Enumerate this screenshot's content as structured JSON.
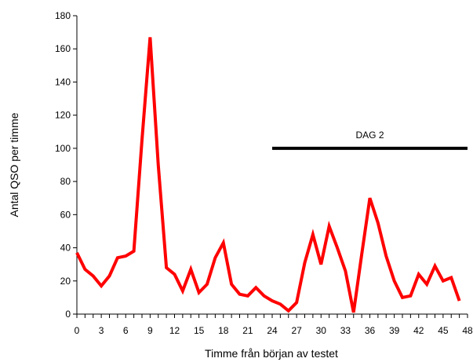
{
  "chart_data": {
    "type": "line",
    "title": "",
    "xlabel": "Timme från början av testet",
    "ylabel": "Antal QSO per timme",
    "xlim": [
      0,
      48
    ],
    "ylim": [
      0,
      180
    ],
    "x_ticks": [
      0,
      3,
      6,
      9,
      12,
      15,
      18,
      21,
      24,
      27,
      30,
      33,
      36,
      39,
      42,
      45,
      48
    ],
    "y_ticks": [
      0,
      20,
      40,
      60,
      80,
      100,
      120,
      140,
      160,
      180
    ],
    "grid": false,
    "legend": "none",
    "series": [
      {
        "color": "#ff0000",
        "x": [
          0,
          1,
          2,
          3,
          4,
          5,
          6,
          7,
          8,
          9,
          10,
          11,
          12,
          13,
          14,
          15,
          16,
          17,
          18,
          19,
          20,
          21,
          22,
          23,
          24,
          25,
          26,
          27,
          28,
          29,
          30,
          31,
          32,
          33,
          34,
          35,
          36,
          37,
          38,
          39,
          40,
          41,
          42,
          43,
          44,
          45,
          46,
          47
        ],
        "values": [
          37,
          27,
          23,
          17,
          23,
          34,
          35,
          38,
          105,
          167,
          90,
          28,
          24,
          14,
          27,
          13,
          18,
          34,
          43,
          18,
          12,
          11,
          16,
          11,
          8,
          6,
          2,
          7,
          31,
          48,
          30,
          53,
          40,
          26,
          1,
          36,
          70,
          55,
          35,
          20,
          10,
          11,
          24,
          18,
          29,
          20,
          22,
          8
        ]
      }
    ],
    "annotations": [
      {
        "label": "DAG 2",
        "x_start": 24,
        "x_end": 48,
        "y": 100,
        "color": "#000000"
      }
    ]
  }
}
